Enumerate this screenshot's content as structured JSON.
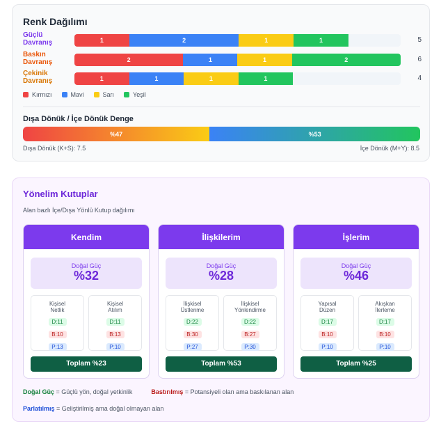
{
  "distribution": {
    "title": "Renk Dağılımı",
    "rows": [
      {
        "label_line1": "Güçlü",
        "label_line2": "Davranış",
        "label_color": "#7c3aed",
        "total": "5",
        "segments": [
          {
            "value": "1",
            "color": "#ef4444"
          },
          {
            "value": "2",
            "color": "#3b82f6"
          },
          {
            "value": "1",
            "color": "#facc15"
          },
          {
            "value": "1",
            "color": "#22c55e"
          }
        ],
        "fill_fraction": 0.84
      },
      {
        "label_line1": "Baskın",
        "label_line2": "Davranış",
        "label_color": "#ea580c",
        "total": "6",
        "segments": [
          {
            "value": "2",
            "color": "#ef4444"
          },
          {
            "value": "1",
            "color": "#3b82f6"
          },
          {
            "value": "1",
            "color": "#facc15"
          },
          {
            "value": "2",
            "color": "#22c55e"
          }
        ],
        "fill_fraction": 1.0
      },
      {
        "label_line1": "Çekinik",
        "label_line2": "Davranış",
        "label_color": "#d97706",
        "total": "4",
        "segments": [
          {
            "value": "1",
            "color": "#ef4444"
          },
          {
            "value": "1",
            "color": "#3b82f6"
          },
          {
            "value": "1",
            "color": "#facc15"
          },
          {
            "value": "1",
            "color": "#22c55e"
          }
        ],
        "fill_fraction": 0.67
      }
    ],
    "legend": [
      {
        "label": "Kırmızı",
        "color": "#ef4444"
      },
      {
        "label": "Mavi",
        "color": "#3b82f6"
      },
      {
        "label": "Sarı",
        "color": "#facc15"
      },
      {
        "label": "Yeşil",
        "color": "#22c55e"
      }
    ]
  },
  "balance": {
    "title": "Dışa Dönük / İçe Dönük Denge",
    "left_pct_label": "%47",
    "right_pct_label": "%53",
    "left_fraction": 0.47,
    "left_caption": "Dışa Dönük (K+S): 7.5",
    "right_caption": "İçe Dönük (M+Y): 8.5",
    "left_gradient": [
      "#ef4444",
      "#facc15"
    ],
    "right_gradient": [
      "#3b82f6",
      "#22c55e"
    ]
  },
  "poles": {
    "title": "Yönelim Kutuplar",
    "subtitle": "Alan bazlı İçe/Dışa Yönlü Kutup dağılımı",
    "dg_label": "Doğal Güç",
    "items": [
      {
        "name": "Kendim",
        "dg_value": "%32",
        "total": "Toplam %23",
        "subs": [
          {
            "line1": "Kişisel",
            "line2": "Netlik",
            "d": "D:11",
            "b": "B:10",
            "p": "P:13"
          },
          {
            "line1": "Kişisel",
            "line2": "Atılım",
            "d": "D:11",
            "b": "B:13",
            "p": "P:10"
          }
        ]
      },
      {
        "name": "İlişkilerim",
        "dg_value": "%28",
        "total": "Toplam %53",
        "subs": [
          {
            "line1": "İlişkisel",
            "line2": "Üstlenme",
            "d": "D:22",
            "b": "B:30",
            "p": "P:27"
          },
          {
            "line1": "İlişkisel",
            "line2": "Yönlendirme",
            "d": "D:22",
            "b": "B:27",
            "p": "P:30"
          }
        ]
      },
      {
        "name": "İşlerim",
        "dg_value": "%46",
        "total": "Toplam %25",
        "subs": [
          {
            "line1": "Yapısal",
            "line2": "Düzen",
            "d": "D:17",
            "b": "B:10",
            "p": "P:10"
          },
          {
            "line1": "Akışkan",
            "line2": "İlerleme",
            "d": "D:17",
            "b": "B:10",
            "p": "P:10"
          }
        ]
      }
    ],
    "notes": {
      "dg_term": "Doğal Güç",
      "dg_desc": " = Güçlü yön, doğal yetkinlik",
      "b_term": "Bastırılmış",
      "b_desc": " = Potansiyeli olan ama baskılanan alan",
      "p_term": "Parlatılmış",
      "p_desc": " = Geliştirilmiş ama doğal olmayan alan"
    }
  },
  "colors": {
    "accent": "#7c3aed",
    "total_button": "#0f5f44"
  }
}
